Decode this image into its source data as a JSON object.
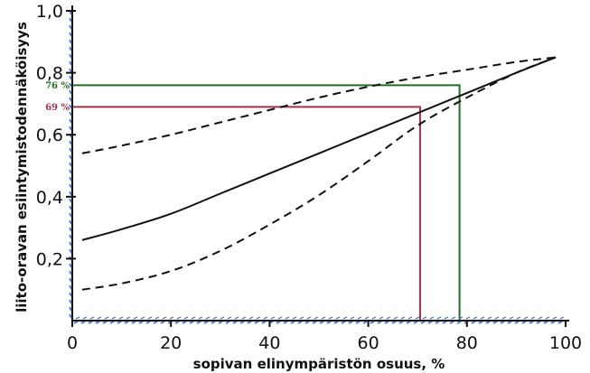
{
  "chart_data": {
    "type": "line",
    "title": "",
    "xlabel": "sopivan elinympäristön osuus, %",
    "ylabel": "liito-oravan esiintymistodennäköisyys",
    "xlim": [
      0,
      100
    ],
    "ylim": [
      0,
      1.0
    ],
    "xticks": [
      0,
      20,
      40,
      60,
      80,
      100
    ],
    "xtick_labels": [
      "0",
      "20",
      "40",
      "60",
      "80",
      "100"
    ],
    "yticks": [
      0.2,
      0.4,
      0.6,
      0.8,
      1.0
    ],
    "ytick_labels": [
      "0,2",
      "0,4",
      "0,6",
      "0,8",
      "1,0"
    ],
    "grid": false,
    "series": [
      {
        "style": "solid",
        "color": "#111111",
        "x": [
          2,
          10,
          20,
          30,
          40,
          50,
          60,
          70,
          80,
          90,
          98
        ],
        "y": [
          0.26,
          0.295,
          0.345,
          0.41,
          0.475,
          0.54,
          0.605,
          0.67,
          0.735,
          0.8,
          0.85
        ]
      },
      {
        "style": "dashed",
        "color": "#111111",
        "x": [
          2,
          10,
          20,
          30,
          40,
          50,
          60,
          70,
          80,
          90,
          98
        ],
        "y": [
          0.54,
          0.565,
          0.6,
          0.64,
          0.68,
          0.72,
          0.755,
          0.785,
          0.81,
          0.835,
          0.85
        ]
      },
      {
        "style": "dashed",
        "color": "#111111",
        "x": [
          2,
          10,
          20,
          30,
          40,
          50,
          60,
          70,
          80,
          90,
          98
        ],
        "y": [
          0.1,
          0.12,
          0.16,
          0.225,
          0.31,
          0.405,
          0.515,
          0.63,
          0.72,
          0.8,
          0.85
        ]
      }
    ],
    "annotations": [
      {
        "label": "76 %",
        "x": 78.5,
        "y": 0.76,
        "color": "#1f6f1f"
      },
      {
        "label": "69 %",
        "x": 70.5,
        "y": 0.69,
        "color": "#a8304a"
      }
    ]
  }
}
